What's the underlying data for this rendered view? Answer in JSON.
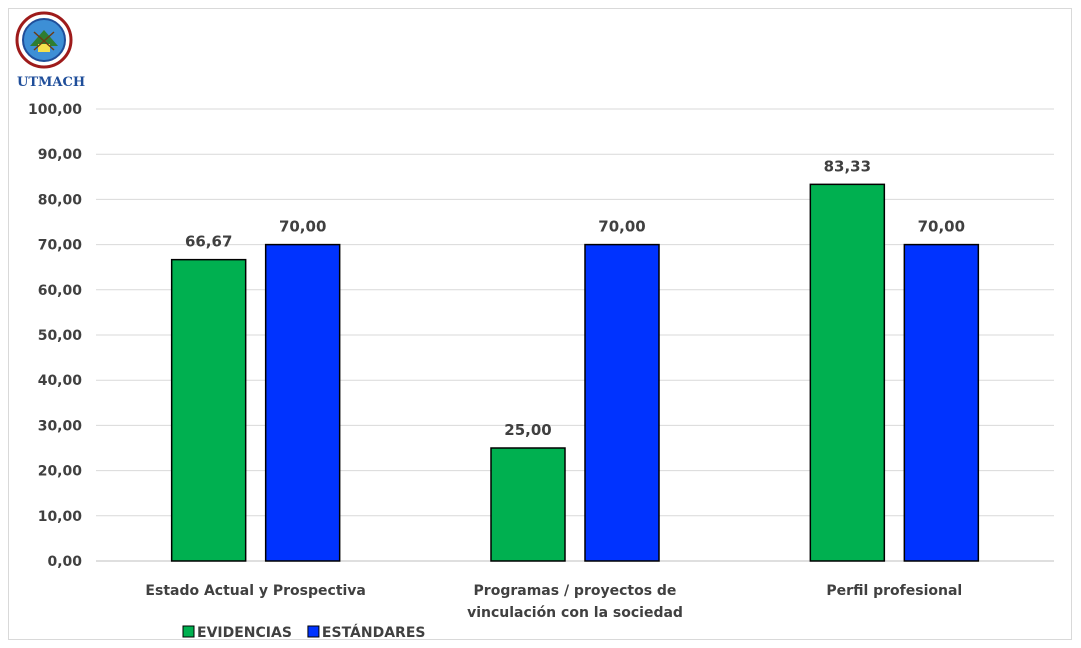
{
  "logo": {
    "text": "UTMACH",
    "icon": "university-seal-icon"
  },
  "chart_data": {
    "type": "bar",
    "categories": [
      [
        "Estado Actual y Prospectiva"
      ],
      [
        "Programas / proyectos de",
        "vinculación con la sociedad"
      ],
      [
        "Perfil profesional"
      ]
    ],
    "series": [
      {
        "name": "EVIDENCIAS",
        "color": "#00b050",
        "values": [
          66.67,
          25.0,
          83.33
        ],
        "labels": [
          "66,67",
          "25,00",
          "83,33"
        ]
      },
      {
        "name": "ESTÁNDARES",
        "color": "#0033ff",
        "values": [
          70.0,
          70.0,
          70.0
        ],
        "labels": [
          "70,00",
          "70,00",
          "70,00"
        ]
      }
    ],
    "ylim": [
      0,
      100
    ],
    "yticks": [
      0,
      10,
      20,
      30,
      40,
      50,
      60,
      70,
      80,
      90,
      100
    ],
    "ytick_labels": [
      "0,00",
      "10,00",
      "20,00",
      "30,00",
      "40,00",
      "50,00",
      "60,00",
      "70,00",
      "80,00",
      "90,00",
      "100,00"
    ],
    "grid": true,
    "legend": "bottom-left",
    "title": "",
    "xlabel": "",
    "ylabel": ""
  }
}
